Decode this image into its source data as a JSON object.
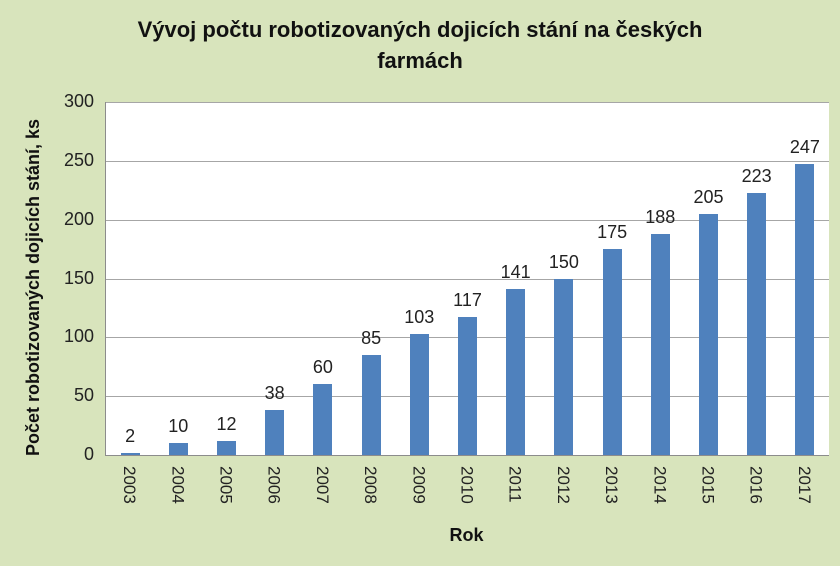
{
  "chart_data": {
    "type": "bar",
    "title": "Vývoj počtu robotizovaných dojicích stání na českých farmách",
    "title_lines": [
      "Vývoj počtu robotizovaných dojicích stání na českých",
      "farmách"
    ],
    "xlabel": "Rok",
    "ylabel": "Počet robotizovaných dojicích stání, ks",
    "categories": [
      "2003",
      "2004",
      "2005",
      "2006",
      "2007",
      "2008",
      "2009",
      "2010",
      "2011",
      "2012",
      "2013",
      "2014",
      "2015",
      "2016",
      "2017"
    ],
    "values": [
      2,
      10,
      12,
      38,
      60,
      85,
      103,
      117,
      141,
      150,
      175,
      188,
      205,
      223,
      247
    ],
    "data_labels": [
      "2",
      "10",
      "12",
      "38",
      "60",
      "85",
      "103",
      "117",
      "141",
      "150",
      "175",
      "188",
      "205",
      "223",
      "247"
    ],
    "ylim": [
      0,
      300
    ],
    "yticks": [
      "0",
      "50",
      "100",
      "150",
      "200",
      "250",
      "300"
    ],
    "grid": true,
    "legend": null,
    "colors": {
      "bar": "#4f81bd",
      "background": "#d8e4bc",
      "plot": "#ffffff"
    }
  }
}
